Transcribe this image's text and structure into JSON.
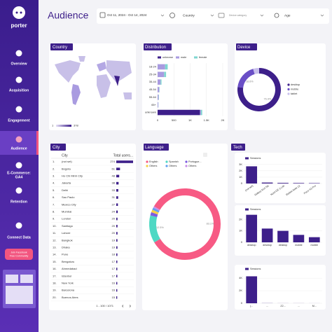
{
  "sidebar": {
    "brand": "porter",
    "active": 3,
    "nav": [
      [
        "Overview"
      ],
      [
        "Acquisition"
      ],
      [
        "Engagement"
      ],
      [
        "Audience"
      ],
      [
        "E-Commerce:",
        "GA4"
      ],
      [
        "Retention"
      ],
      [
        "Connect Data"
      ]
    ],
    "community_button": [
      "Join Facebook",
      "Free Community"
    ]
  },
  "header": {
    "title": "Audience",
    "date_range": "Oct 11, 2024 - Oct 14, 2024",
    "filters": [
      "Country",
      "Device category",
      "Age"
    ]
  },
  "country": {
    "title": "Country",
    "legend_min": 1,
    "legend_max": 378
  },
  "city": {
    "title": "City",
    "columns": [
      "City",
      "Total users..."
    ],
    "rows": [
      [
        "1.",
        "(not set)",
        274
      ],
      [
        "2.",
        "Bogota",
        61
      ],
      [
        "3.",
        "Ho Chi Minh City",
        48
      ],
      [
        "4.",
        "Jakarta",
        38
      ],
      [
        "5.",
        "Delhi",
        33
      ],
      [
        "6.",
        "Sao Paulo",
        31
      ],
      [
        "7.",
        "Mexico City",
        27
      ],
      [
        "8.",
        "Mumbai",
        24
      ],
      [
        "9.",
        "London",
        20
      ],
      [
        "10.",
        "Santiago",
        20
      ],
      [
        "11.",
        "Lahore",
        20
      ],
      [
        "12.",
        "Bangkok",
        19
      ],
      [
        "13.",
        "Dhaka",
        19
      ],
      [
        "14.",
        "Pune",
        18
      ],
      [
        "15.",
        "Bengaluru",
        17
      ],
      [
        "16.",
        "Ahmedabad",
        17
      ],
      [
        "17.",
        "Istanbul",
        17
      ],
      [
        "18.",
        "New York",
        16
      ],
      [
        "19.",
        "Barcelona",
        16
      ],
      [
        "20.",
        "Buenos Aires",
        15
      ]
    ],
    "pagination": "1 - 100 / 1071"
  },
  "tech_title": "Tech",
  "chart_data": [
    {
      "type": "hbar_stacked",
      "title": "Distribution",
      "categories": [
        "18-24",
        "25-34",
        "35-44",
        "45-54",
        "55-64",
        "65+",
        "unknown"
      ],
      "series": [
        {
          "name": "unknown",
          "color": "#3d1f8a",
          "values": [
            0,
            0,
            0,
            0,
            0,
            0,
            1300
          ]
        },
        {
          "name": "male",
          "color": "#a99be0",
          "values": [
            230,
            200,
            90,
            50,
            30,
            20,
            30
          ]
        },
        {
          "name": "female",
          "color": "#7fd6d0",
          "values": [
            80,
            60,
            30,
            10,
            10,
            5,
            40
          ]
        }
      ],
      "xlim": [
        0,
        2000
      ],
      "xticks": [
        0,
        500,
        {
          "value": 1000,
          "label": "1K"
        },
        {
          "value": 1500,
          "label": "1.5K"
        },
        {
          "value": 2000,
          "label": "2K"
        }
      ],
      "grid": true
    },
    {
      "type": "donut",
      "title": "Device",
      "categories": [
        "desktop",
        "mobile",
        "tablet"
      ],
      "values": [
        76.9,
        18.6,
        4.5
      ],
      "value_labels": [
        "76.9%",
        "18.6%",
        null
      ],
      "colors": [
        "#3d1f8a",
        "#6a4fc6",
        "#c8c0ec"
      ]
    },
    {
      "type": "donut",
      "title": "Language",
      "categories": [
        "English",
        "Spanish",
        "Portugue...",
        "Others",
        "Others",
        "Others"
      ],
      "values": [
        83.1,
        12.5,
        1.5,
        1.2,
        1.0,
        0.7
      ],
      "value_labels": [
        "83.1%",
        "12.5%",
        null,
        null,
        null,
        null
      ],
      "colors": [
        "#f75a84",
        "#4fd8c4",
        "#7c5ce0",
        "#f5d043",
        "#5fa0f0",
        "#c88ce8"
      ]
    },
    {
      "type": "bar",
      "series": [
        {
          "name": "Sessions",
          "color": "#3d1f8a",
          "values": [
            2700,
            150,
            100,
            80,
            60
          ]
        }
      ],
      "categories": [
        "(not set)",
        "Galaxy A14 5G",
        "Nord CE 3 Lite",
        "Redmi Note 12",
        "Poco X3 Pro"
      ],
      "ylim": [
        0,
        3300
      ],
      "yticks": [
        0,
        {
          "value": 1000,
          "label": "1K"
        },
        {
          "value": 2000,
          "label": "2K"
        },
        {
          "value": 3000,
          "label": "3K"
        }
      ],
      "rotate_labels": true
    },
    {
      "type": "bar",
      "series": [
        {
          "name": "Sessions",
          "color": "#3d1f8a",
          "values": [
            2400,
            1200,
            1000,
            650,
            450
          ]
        }
      ],
      "categories": [
        "desktop",
        "desktop",
        "desktop",
        "mobile",
        "mobile"
      ],
      "ylim": [
        0,
        2500
      ],
      "yticks": [
        0,
        {
          "value": 1000,
          "label": "1K"
        },
        {
          "value": 2000,
          "label": "2K"
        }
      ],
      "rotate_labels": false
    },
    {
      "type": "bar",
      "series": [
        {
          "name": "Sessions",
          "color": "#3d1f8a",
          "values": [
            4300,
            20,
            10,
            10,
            5
          ]
        }
      ],
      "categories": [
        "(...",
        "...",
        "Z2...",
        "...",
        "M..."
      ],
      "ylim": [
        0,
        4800
      ],
      "yticks": [
        0,
        {
          "value": 2000,
          "label": "2K"
        },
        {
          "value": 4000,
          "label": "4K"
        }
      ],
      "rotate_labels": false
    }
  ]
}
